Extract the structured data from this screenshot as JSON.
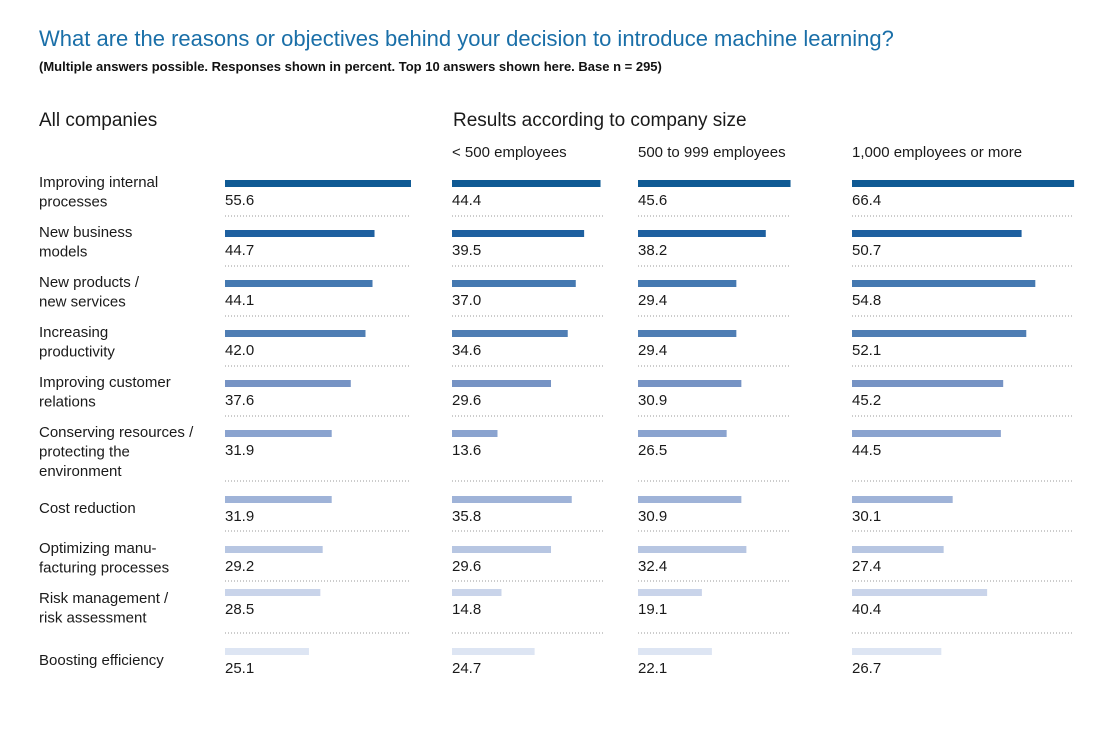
{
  "title": "What are the reasons or objectives behind your decision to introduce machine learning?",
  "subtitle": "(Multiple answers possible. Responses shown in percent. Top 10 answers shown here. Base n = 295)",
  "chart_data": {
    "type": "bar",
    "orientation": "horizontal",
    "section_headers": {
      "all": "All companies",
      "by_size": "Results according to company size"
    },
    "categories": [
      [
        "Improving internal",
        "processes"
      ],
      [
        "New business",
        "models"
      ],
      [
        "New products /",
        "new services"
      ],
      [
        "Increasing",
        "productivity"
      ],
      [
        "Improving customer",
        "relations"
      ],
      [
        "Conserving resources /",
        "protecting the",
        "environment"
      ],
      [
        "Cost reduction"
      ],
      [
        "Optimizing manu-",
        "facturing processes"
      ],
      [
        "Risk management /",
        "risk assessment"
      ],
      [
        "Boosting efficiency"
      ]
    ],
    "series": [
      {
        "name": "",
        "values": [
          55.6,
          44.7,
          44.1,
          42.0,
          37.6,
          31.9,
          31.9,
          29.2,
          28.5,
          25.1
        ]
      },
      {
        "name": "< 500 employees",
        "values": [
          44.4,
          39.5,
          37.0,
          34.6,
          29.6,
          13.6,
          35.8,
          29.6,
          14.8,
          24.7
        ]
      },
      {
        "name": "500 to 999 employees",
        "values": [
          45.6,
          38.2,
          29.4,
          29.4,
          30.9,
          26.5,
          30.9,
          32.4,
          19.1,
          22.1
        ]
      },
      {
        "name": "1,000 employees or more",
        "values": [
          66.4,
          50.7,
          54.8,
          52.1,
          45.2,
          44.5,
          30.1,
          27.4,
          40.4,
          26.7
        ]
      }
    ],
    "bar_colors": [
      "#0f5a94",
      "#1e60a0",
      "#4579b1",
      "#4f7eb4",
      "#7693c4",
      "#8aa3cf",
      "#9fb3d8",
      "#b7c6e2",
      "#c9d4ea",
      "#dde5f3"
    ],
    "decimals": 1,
    "grid": "dotted separators"
  }
}
